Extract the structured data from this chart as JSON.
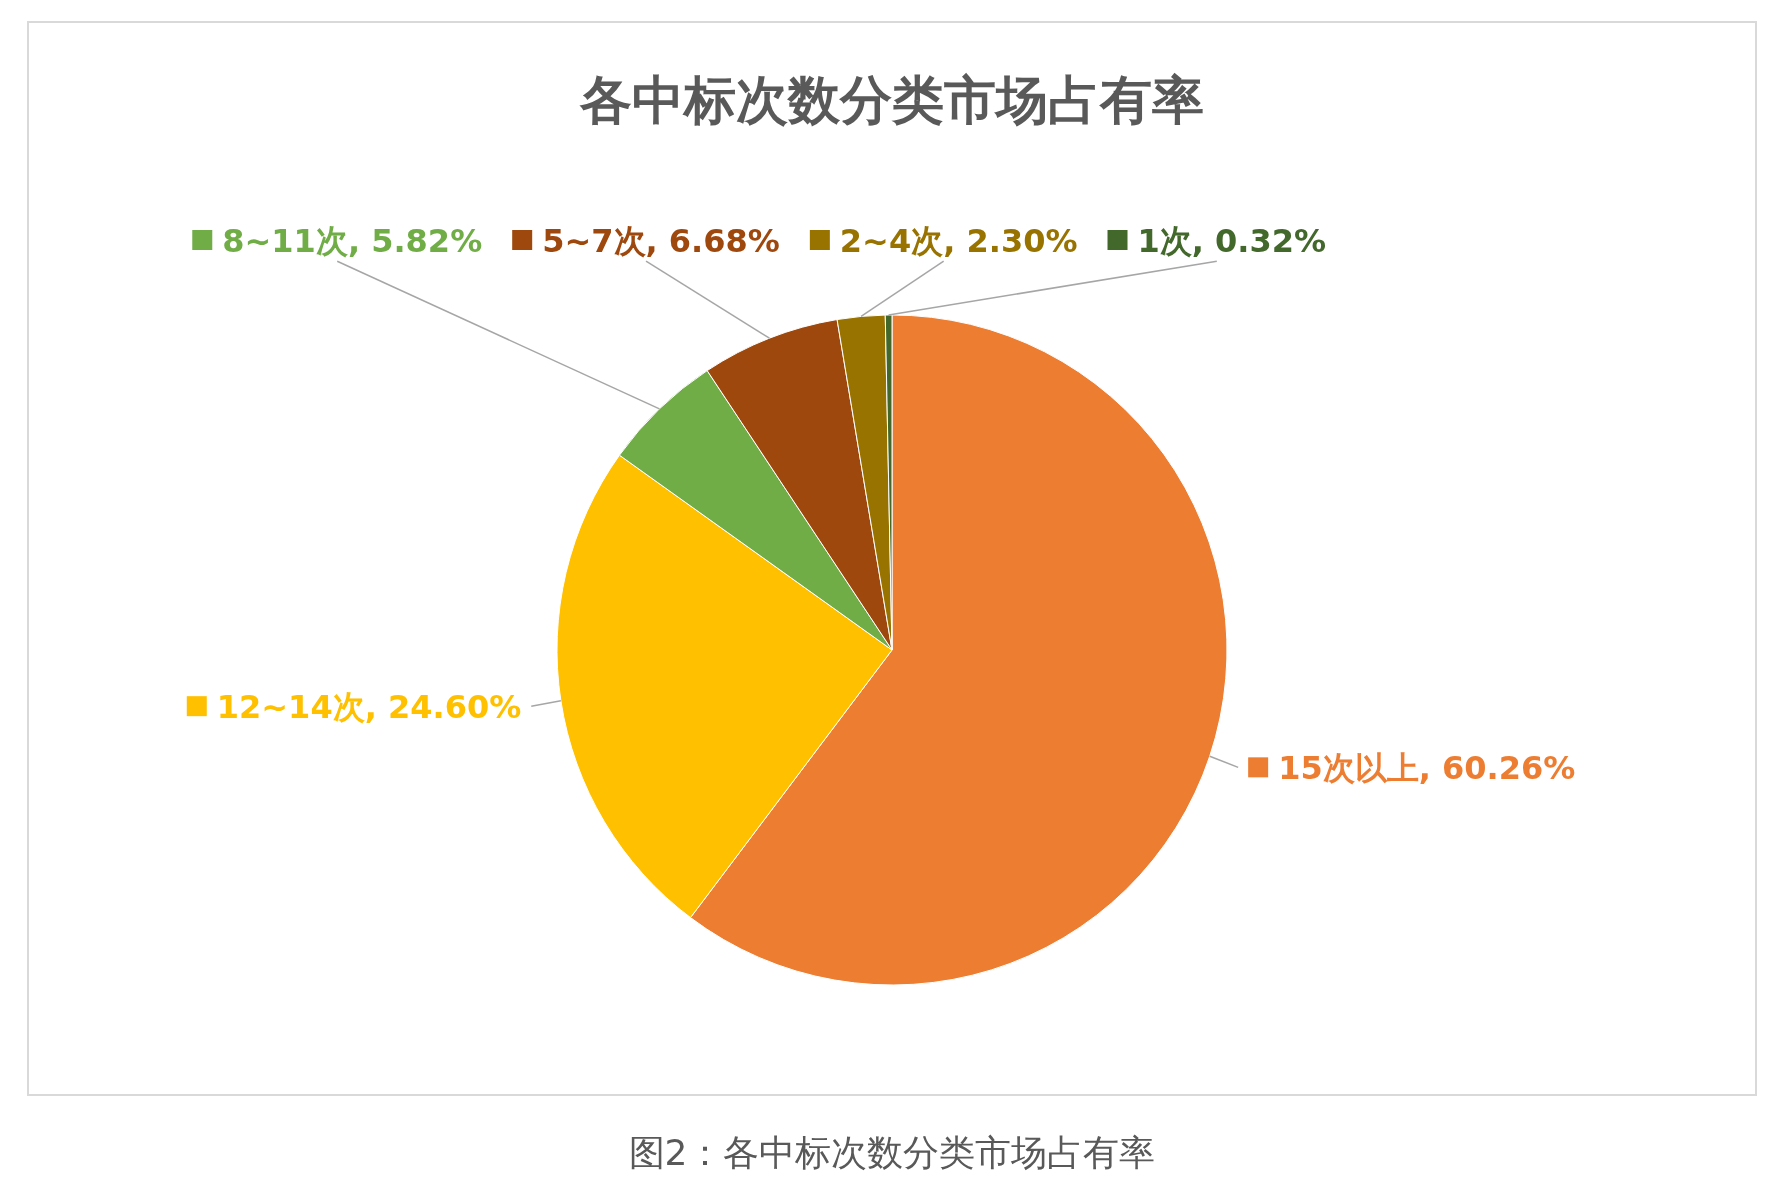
{
  "chart_data": {
    "type": "pie",
    "title": "各中标次数分类市场占有率",
    "categories": [
      "15次以上",
      "12~14次",
      "8~11次",
      "5~7次",
      "2~4次",
      "1次"
    ],
    "values": [
      60.26,
      24.6,
      5.82,
      6.68,
      2.3,
      0.32
    ],
    "colors": [
      "#ed7d31",
      "#ffc000",
      "#70ad47",
      "#9e480e",
      "#997300",
      "#43682b"
    ],
    "value_labels": [
      "60.26%",
      "24.60%",
      "5.82%",
      "6.68%",
      "2.30%",
      "0.32%"
    ],
    "legend": "top",
    "annotations": [
      "图2：各中标次数分类市场占有率"
    ]
  }
}
